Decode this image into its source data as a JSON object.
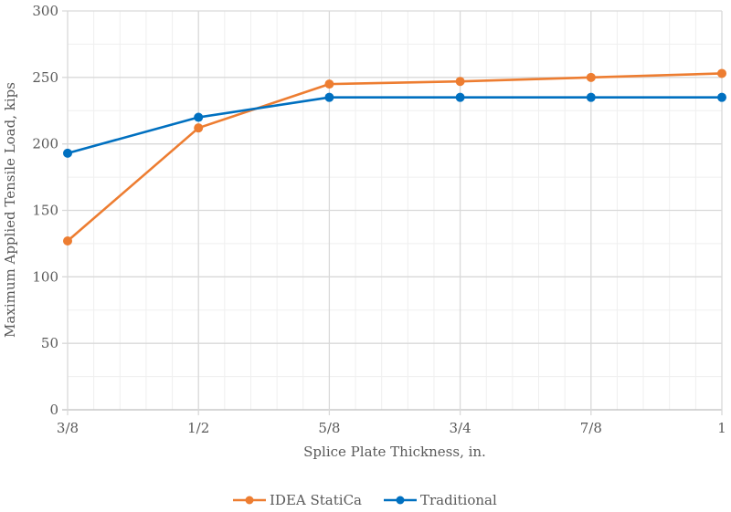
{
  "chart_data": {
    "type": "line",
    "title": "",
    "xlabel": "Splice Plate Thickness, in.",
    "ylabel": "Maximum Applied Tensile Load, kips",
    "categories": [
      "3/8",
      "1/2",
      "5/8",
      "3/4",
      "7/8",
      "1"
    ],
    "ylim": [
      0,
      300
    ],
    "yticks": [
      0,
      50,
      100,
      150,
      200,
      250,
      300
    ],
    "grid": true,
    "legend_position": "bottom",
    "series": [
      {
        "name": "IDEA StatiCa",
        "color": "#ED7D31",
        "values": [
          127,
          212,
          245,
          247,
          250,
          253
        ]
      },
      {
        "name": "Traditional",
        "color": "#0070C0",
        "values": [
          193,
          220,
          235,
          235,
          235,
          235
        ]
      }
    ]
  }
}
